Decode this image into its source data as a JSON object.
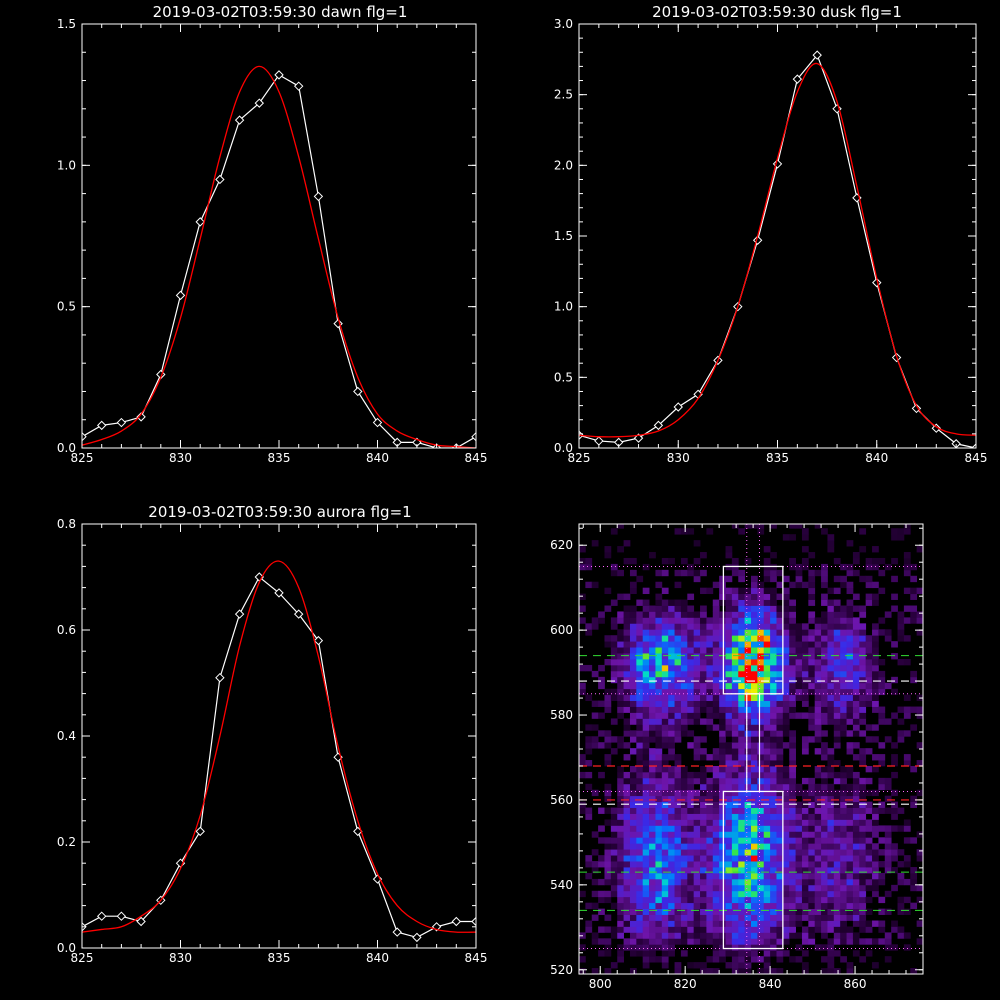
{
  "colors": {
    "background": "#000000",
    "foreground": "#ffffff",
    "fit_line": "#ff0000",
    "marker": "#ffffff",
    "dash_green": "#33dd33",
    "dash_red": "#ff2222",
    "dash_white": "#ffffff",
    "dotted_magenta": "#ff66ff"
  },
  "chart_data": [
    {
      "type": "line",
      "title": "2019-03-02T03:59:30 dawn flg=1",
      "xlim": [
        825,
        845
      ],
      "ylim": [
        0,
        1.5
      ],
      "xticks": [
        "825",
        "830",
        "835",
        "840",
        "845"
      ],
      "yticks": [
        "0.0",
        "0.5",
        "1.0",
        "1.5"
      ],
      "grid": false,
      "series": [
        {
          "style": "white-diamonds",
          "x": [
            825,
            826,
            827,
            828,
            829,
            830,
            831,
            832,
            833,
            834,
            835,
            836,
            837,
            838,
            839,
            840,
            841,
            842,
            843,
            844,
            845
          ],
          "y": [
            0.04,
            0.08,
            0.09,
            0.11,
            0.26,
            0.54,
            0.8,
            0.95,
            1.16,
            1.22,
            1.32,
            1.28,
            0.89,
            0.44,
            0.2,
            0.09,
            0.02,
            0.02,
            0.0,
            0.0,
            0.04
          ]
        },
        {
          "style": "red-fit",
          "x": [
            825,
            826,
            827,
            828,
            829,
            830,
            831,
            832,
            833,
            834,
            835,
            836,
            837,
            838,
            839,
            840,
            841,
            842,
            843,
            844,
            845
          ],
          "y": [
            0.01,
            0.03,
            0.06,
            0.12,
            0.25,
            0.46,
            0.74,
            1.03,
            1.26,
            1.35,
            1.26,
            1.03,
            0.74,
            0.46,
            0.25,
            0.12,
            0.06,
            0.03,
            0.01,
            0.005,
            0.0
          ]
        }
      ]
    },
    {
      "type": "line",
      "title": "2019-03-02T03:59:30 dusk flg=1",
      "xlim": [
        825,
        845
      ],
      "ylim": [
        0,
        3.0
      ],
      "xticks": [
        "825",
        "830",
        "835",
        "840",
        "845"
      ],
      "yticks": [
        "0.0",
        "0.5",
        "1.0",
        "1.5",
        "2.0",
        "2.5",
        "3.0"
      ],
      "grid": false,
      "series": [
        {
          "style": "white-diamonds",
          "x": [
            825,
            826,
            827,
            828,
            829,
            830,
            831,
            832,
            833,
            834,
            835,
            836,
            837,
            838,
            839,
            840,
            841,
            842,
            843,
            844,
            845
          ],
          "y": [
            0.09,
            0.05,
            0.04,
            0.07,
            0.16,
            0.29,
            0.38,
            0.62,
            1.0,
            1.47,
            2.01,
            2.61,
            2.78,
            2.4,
            1.77,
            1.17,
            0.64,
            0.28,
            0.14,
            0.03,
            0.0
          ]
        },
        {
          "style": "red-fit",
          "x": [
            825,
            826,
            827,
            828,
            829,
            830,
            831,
            832,
            833,
            834,
            835,
            836,
            837,
            838,
            839,
            840,
            841,
            842,
            843,
            844,
            845
          ],
          "y": [
            0.09,
            0.08,
            0.08,
            0.09,
            0.12,
            0.2,
            0.35,
            0.62,
            1.0,
            1.5,
            2.05,
            2.52,
            2.72,
            2.45,
            1.85,
            1.2,
            0.65,
            0.3,
            0.15,
            0.1,
            0.09
          ]
        }
      ]
    },
    {
      "type": "line",
      "title": "2019-03-02T03:59:30 aurora flg=1",
      "xlim": [
        825,
        845
      ],
      "ylim": [
        0,
        0.8
      ],
      "xticks": [
        "825",
        "830",
        "835",
        "840",
        "845"
      ],
      "yticks": [
        "0.0",
        "0.2",
        "0.4",
        "0.6",
        "0.8"
      ],
      "grid": false,
      "series": [
        {
          "style": "white-diamonds",
          "x": [
            825,
            826,
            827,
            828,
            829,
            830,
            831,
            832,
            833,
            834,
            835,
            836,
            837,
            838,
            839,
            840,
            841,
            842,
            843,
            844,
            845
          ],
          "y": [
            0.04,
            0.06,
            0.06,
            0.05,
            0.09,
            0.16,
            0.22,
            0.51,
            0.63,
            0.7,
            0.67,
            0.63,
            0.58,
            0.36,
            0.22,
            0.13,
            0.03,
            0.02,
            0.04,
            0.05,
            0.05
          ]
        },
        {
          "style": "red-fit",
          "x": [
            825,
            826,
            827,
            828,
            829,
            830,
            831,
            832,
            833,
            834,
            835,
            836,
            837,
            838,
            839,
            840,
            841,
            842,
            843,
            844,
            845
          ],
          "y": [
            0.03,
            0.035,
            0.04,
            0.06,
            0.09,
            0.15,
            0.25,
            0.4,
            0.57,
            0.69,
            0.73,
            0.68,
            0.55,
            0.38,
            0.24,
            0.14,
            0.08,
            0.05,
            0.035,
            0.03,
            0.03
          ]
        }
      ]
    },
    {
      "type": "heatmap",
      "title": "",
      "xlim": [
        795,
        876
      ],
      "ylim": [
        519,
        625
      ],
      "xticks": [
        "800",
        "820",
        "840",
        "860"
      ],
      "yticks": [
        "520",
        "540",
        "560",
        "580",
        "600",
        "620"
      ],
      "grid": false,
      "columns": [
        {
          "x_center": 814,
          "y_center": 592,
          "x_width": 6,
          "y_width": 8,
          "peak": 0.55
        },
        {
          "x_center": 836,
          "y_center": 592,
          "x_width": 5,
          "y_width": 8,
          "peak": 1.0
        },
        {
          "x_center": 857,
          "y_center": 592,
          "x_width": 5,
          "y_width": 8,
          "peak": 0.35
        },
        {
          "x_center": 813,
          "y_center": 546,
          "x_width": 6,
          "y_width": 14,
          "peak": 0.45
        },
        {
          "x_center": 835,
          "y_center": 546,
          "x_width": 6,
          "y_width": 14,
          "peak": 0.65
        },
        {
          "x_center": 856,
          "y_center": 546,
          "x_width": 6,
          "y_width": 14,
          "peak": 0.22
        }
      ],
      "boxes": [
        {
          "x0": 829,
          "x1": 843,
          "y0": 585,
          "y1": 615
        },
        {
          "x0": 829,
          "x1": 843,
          "y0": 525,
          "y1": 562
        }
      ],
      "vertical_dotted": [
        834.5,
        837.5
      ],
      "vertical_solid": [
        834.5,
        837.5
      ],
      "vertical_solid_range": [
        562,
        585
      ],
      "h_dotted_magenta": [
        615,
        585,
        562,
        525
      ],
      "h_dashed_green": [
        594,
        543,
        534
      ],
      "h_dashed_white": [
        588,
        559
      ],
      "h_dashed_red": [
        568,
        560
      ]
    }
  ]
}
